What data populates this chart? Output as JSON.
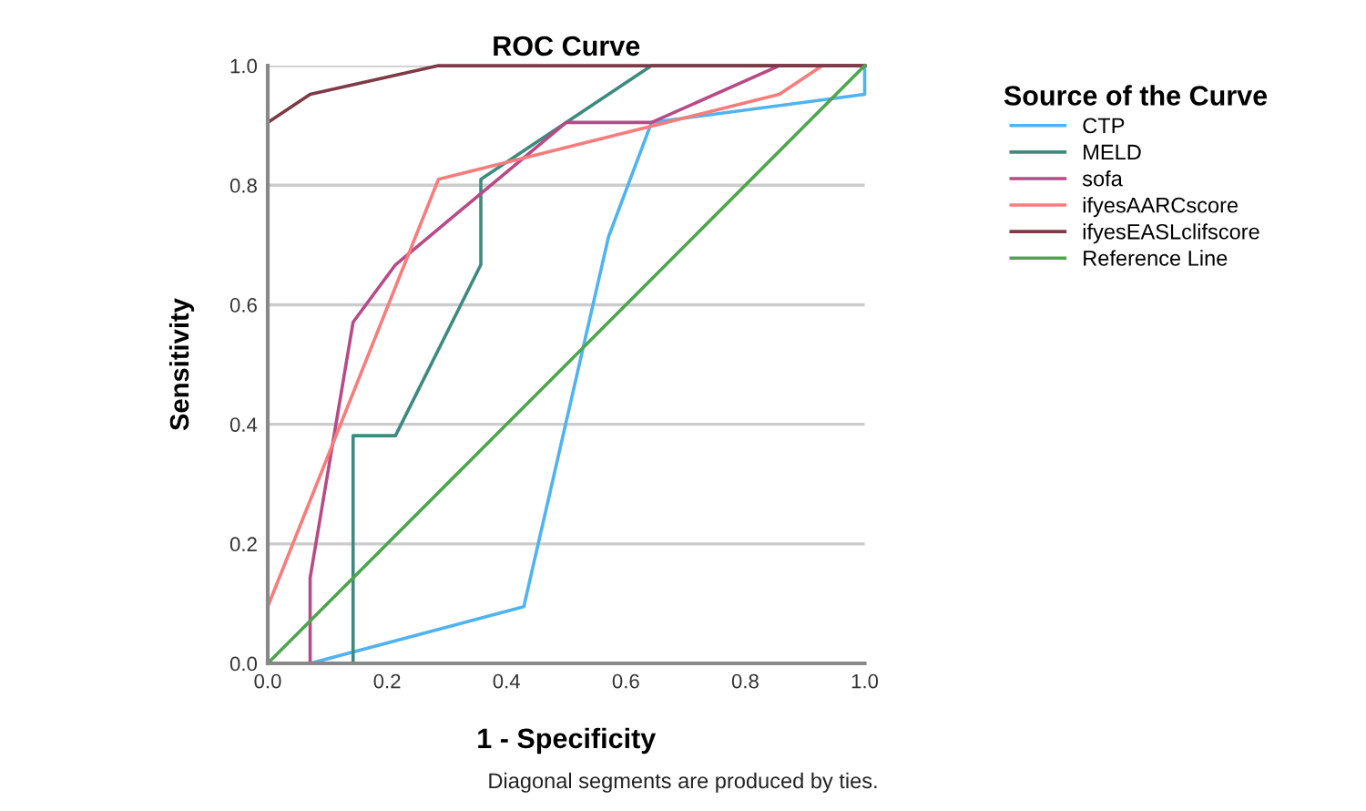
{
  "chart_data": {
    "type": "line",
    "title": "ROC Curve",
    "xlabel": "1 - Specificity",
    "ylabel": "Sensitivity",
    "legend_title": "Source of the Curve",
    "legend": "right",
    "grid": "y",
    "marker": "none",
    "line_style": "solid",
    "xlim": [
      0,
      1
    ],
    "ylim": [
      0,
      1
    ],
    "xticks": [
      {
        "value": 0,
        "label": "0.0"
      },
      {
        "value": 0.2,
        "label": "0.2"
      },
      {
        "value": 0.4,
        "label": "0.4"
      },
      {
        "value": 0.6,
        "label": "0.6"
      },
      {
        "value": 0.8,
        "label": "0.8"
      },
      {
        "value": 1,
        "label": "1.0"
      }
    ],
    "yticks": [
      {
        "value": 0,
        "label": "0.0"
      },
      {
        "value": 0.2,
        "label": "0.2"
      },
      {
        "value": 0.4,
        "label": "0.4"
      },
      {
        "value": 0.6,
        "label": "0.6"
      },
      {
        "value": 0.8,
        "label": "0.8"
      },
      {
        "value": 1,
        "label": "1.0"
      }
    ],
    "series": [
      {
        "name": "CTP",
        "color": "#4fb3f0",
        "x": [
          0,
          0.071,
          0.429,
          0.571,
          0.643,
          1,
          1
        ],
        "values": [
          0,
          0,
          0.095,
          0.714,
          0.905,
          0.952,
          1
        ]
      },
      {
        "name": "MELD",
        "color": "#3e8a7e",
        "x": [
          0,
          0.143,
          0.143,
          0.214,
          0.357,
          0.357,
          0.643,
          1
        ],
        "values": [
          0,
          0,
          0.381,
          0.381,
          0.667,
          0.81,
          1,
          1
        ]
      },
      {
        "name": "sofa",
        "color": "#b84a86",
        "x": [
          0,
          0.071,
          0.071,
          0.143,
          0.214,
          0.5,
          0.643,
          0.857,
          1
        ],
        "values": [
          0,
          0,
          0.143,
          0.571,
          0.667,
          0.905,
          0.905,
          1,
          1
        ]
      },
      {
        "name": "ifyesAARCscore",
        "color": "#f87c7c",
        "x": [
          0,
          0,
          0.286,
          0.857,
          0.929
        ],
        "values": [
          0,
          0.095,
          0.81,
          0.952,
          1
        ]
      },
      {
        "name": "ifyesEASLclifscore",
        "color": "#7e3a47",
        "x": [
          0,
          0,
          0.071,
          0.286,
          1
        ],
        "values": [
          0,
          0.905,
          0.952,
          1,
          1
        ]
      },
      {
        "name": "Reference Line",
        "color": "#4ea54e",
        "x": [
          0,
          1
        ],
        "values": [
          0,
          1
        ]
      }
    ],
    "annotations": [
      "Diagonal segments are produced by ties."
    ]
  }
}
